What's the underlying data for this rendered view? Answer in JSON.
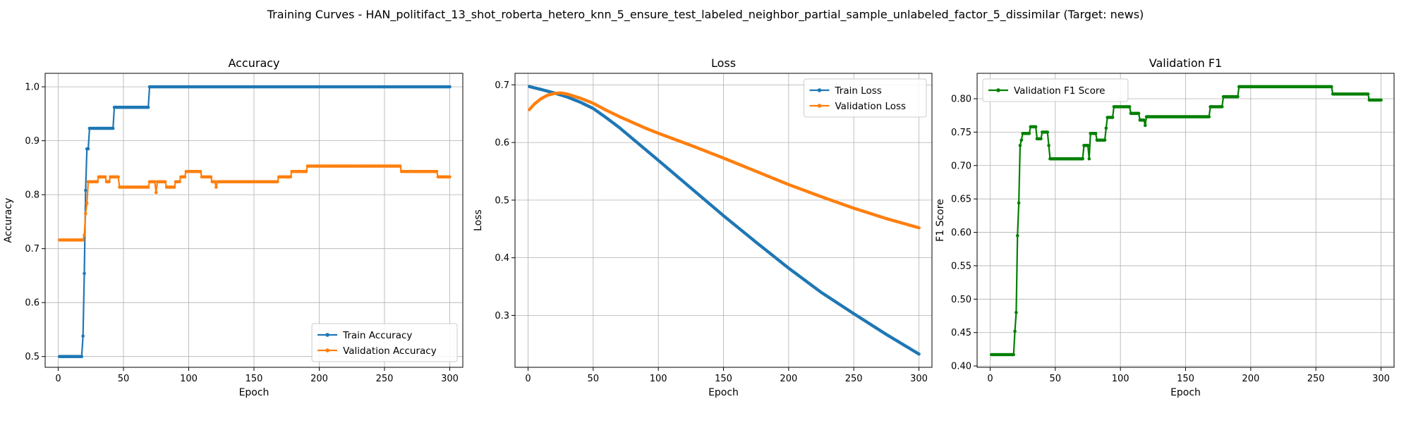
{
  "suptitle": "Training Curves - HAN_politifact_13_shot_roberta_hetero_knn_5_ensure_test_labeled_neighbor_partial_sample_unlabeled_factor_5_dissimilar (Target: news)",
  "chart_data": [
    {
      "type": "line",
      "title": "Accuracy",
      "xlabel": "Epoch",
      "ylabel": "Accuracy",
      "xlim": [
        -10,
        310
      ],
      "ylim": [
        0.48,
        1.025
      ],
      "xticks": [
        0,
        50,
        100,
        150,
        200,
        250,
        300
      ],
      "yticks": [
        0.5,
        0.6,
        0.7,
        0.8,
        0.9,
        1.0
      ],
      "grid": true,
      "legend_position": "lower-right",
      "series": [
        {
          "name": "Train Accuracy",
          "color": "#1f77b4",
          "points": [
            [
              1,
              0.5
            ],
            [
              18,
              0.5
            ],
            [
              19,
              0.538
            ],
            [
              20,
              0.654
            ],
            [
              21,
              0.808
            ],
            [
              22,
              0.885
            ],
            [
              23,
              0.885
            ],
            [
              24,
              0.923
            ],
            [
              42,
              0.923
            ],
            [
              43,
              0.962
            ],
            [
              69,
              0.962
            ],
            [
              70,
              1.0
            ],
            [
              300,
              1.0
            ]
          ]
        },
        {
          "name": "Validation Accuracy",
          "color": "#ff7f0e",
          "points": [
            [
              1,
              0.716
            ],
            [
              19,
              0.716
            ],
            [
              20,
              0.725
            ],
            [
              21,
              0.765
            ],
            [
              22,
              0.784
            ],
            [
              23,
              0.824
            ],
            [
              30,
              0.824
            ],
            [
              31,
              0.833
            ],
            [
              36,
              0.833
            ],
            [
              37,
              0.824
            ],
            [
              39,
              0.824
            ],
            [
              40,
              0.833
            ],
            [
              46,
              0.833
            ],
            [
              47,
              0.814
            ],
            [
              69,
              0.814
            ],
            [
              70,
              0.824
            ],
            [
              74,
              0.824
            ],
            [
              75,
              0.804
            ],
            [
              76,
              0.824
            ],
            [
              82,
              0.824
            ],
            [
              83,
              0.814
            ],
            [
              89,
              0.814
            ],
            [
              90,
              0.824
            ],
            [
              93,
              0.824
            ],
            [
              94,
              0.833
            ],
            [
              97,
              0.833
            ],
            [
              98,
              0.843
            ],
            [
              109,
              0.843
            ],
            [
              110,
              0.833
            ],
            [
              117,
              0.833
            ],
            [
              118,
              0.824
            ],
            [
              120,
              0.824
            ],
            [
              121,
              0.814
            ],
            [
              122,
              0.824
            ],
            [
              168,
              0.824
            ],
            [
              169,
              0.833
            ],
            [
              178,
              0.833
            ],
            [
              179,
              0.843
            ],
            [
              190,
              0.843
            ],
            [
              191,
              0.853
            ],
            [
              262,
              0.853
            ],
            [
              263,
              0.843
            ],
            [
              290,
              0.843
            ],
            [
              291,
              0.833
            ],
            [
              300,
              0.833
            ]
          ]
        }
      ]
    },
    {
      "type": "line",
      "title": "Loss",
      "xlabel": "Epoch",
      "ylabel": "Loss",
      "xlim": [
        -10,
        310
      ],
      "ylim": [
        0.21,
        0.72
      ],
      "xticks": [
        0,
        50,
        100,
        150,
        200,
        250,
        300
      ],
      "yticks": [
        0.3,
        0.4,
        0.5,
        0.6,
        0.7
      ],
      "grid": true,
      "legend_position": "top-right",
      "series": [
        {
          "name": "Train Loss",
          "color": "#1f77b4",
          "points": [
            [
              1,
              0.697
            ],
            [
              10,
              0.692
            ],
            [
              20,
              0.686
            ],
            [
              30,
              0.679
            ],
            [
              40,
              0.67
            ],
            [
              50,
              0.659
            ],
            [
              60,
              0.643
            ],
            [
              70,
              0.626
            ],
            [
              80,
              0.607
            ],
            [
              90,
              0.588
            ],
            [
              100,
              0.569
            ],
            [
              125,
              0.521
            ],
            [
              150,
              0.473
            ],
            [
              175,
              0.427
            ],
            [
              200,
              0.382
            ],
            [
              225,
              0.34
            ],
            [
              250,
              0.303
            ],
            [
              275,
              0.267
            ],
            [
              300,
              0.233
            ]
          ]
        },
        {
          "name": "Validation Loss",
          "color": "#ff7f0e",
          "points": [
            [
              1,
              0.657
            ],
            [
              5,
              0.667
            ],
            [
              10,
              0.676
            ],
            [
              15,
              0.682
            ],
            [
              20,
              0.685
            ],
            [
              25,
              0.686
            ],
            [
              30,
              0.684
            ],
            [
              40,
              0.677
            ],
            [
              50,
              0.668
            ],
            [
              60,
              0.656
            ],
            [
              70,
              0.645
            ],
            [
              80,
              0.635
            ],
            [
              90,
              0.625
            ],
            [
              100,
              0.616
            ],
            [
              125,
              0.595
            ],
            [
              150,
              0.573
            ],
            [
              175,
              0.55
            ],
            [
              200,
              0.527
            ],
            [
              225,
              0.506
            ],
            [
              250,
              0.486
            ],
            [
              275,
              0.468
            ],
            [
              300,
              0.452
            ]
          ]
        }
      ]
    },
    {
      "type": "line",
      "title": "Validation F1",
      "xlabel": "Epoch",
      "ylabel": "F1 Score",
      "xlim": [
        -10,
        310
      ],
      "ylim": [
        0.398,
        0.838
      ],
      "xticks": [
        0,
        50,
        100,
        150,
        200,
        250,
        300
      ],
      "yticks": [
        0.4,
        0.45,
        0.5,
        0.55,
        0.6,
        0.65,
        0.7,
        0.75,
        0.8
      ],
      "grid": true,
      "legend_position": "top-left",
      "series": [
        {
          "name": "Validation F1 Score",
          "color": "#008000",
          "points": [
            [
              1,
              0.417
            ],
            [
              18,
              0.417
            ],
            [
              19,
              0.452
            ],
            [
              20,
              0.48
            ],
            [
              21,
              0.595
            ],
            [
              22,
              0.644
            ],
            [
              23,
              0.73
            ],
            [
              24,
              0.738
            ],
            [
              25,
              0.748
            ],
            [
              30,
              0.748
            ],
            [
              31,
              0.758
            ],
            [
              35,
              0.758
            ],
            [
              36,
              0.74
            ],
            [
              39,
              0.74
            ],
            [
              40,
              0.75
            ],
            [
              44,
              0.75
            ],
            [
              45,
              0.73
            ],
            [
              46,
              0.71
            ],
            [
              71,
              0.71
            ],
            [
              72,
              0.73
            ],
            [
              75,
              0.73
            ],
            [
              76,
              0.71
            ],
            [
              77,
              0.748
            ],
            [
              81,
              0.748
            ],
            [
              82,
              0.738
            ],
            [
              88,
              0.738
            ],
            [
              89,
              0.756
            ],
            [
              90,
              0.772
            ],
            [
              94,
              0.772
            ],
            [
              95,
              0.788
            ],
            [
              107,
              0.788
            ],
            [
              108,
              0.778
            ],
            [
              114,
              0.778
            ],
            [
              115,
              0.768
            ],
            [
              118,
              0.768
            ],
            [
              119,
              0.76
            ],
            [
              120,
              0.773
            ],
            [
              168,
              0.773
            ],
            [
              169,
              0.788
            ],
            [
              178,
              0.788
            ],
            [
              179,
              0.803
            ],
            [
              190,
              0.803
            ],
            [
              191,
              0.818
            ],
            [
              262,
              0.818
            ],
            [
              263,
              0.807
            ],
            [
              290,
              0.807
            ],
            [
              291,
              0.798
            ],
            [
              300,
              0.798
            ]
          ]
        }
      ]
    }
  ]
}
